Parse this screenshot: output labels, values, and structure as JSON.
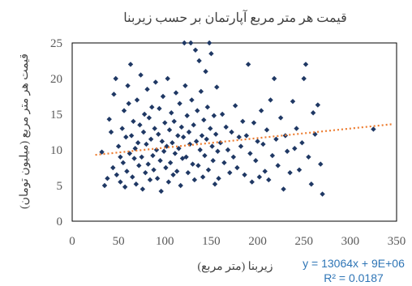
{
  "chart_data": {
    "type": "scatter",
    "title": "قیمت هر متر مربع آپارتمان بر حسب زیربنا",
    "xlabel": "زیربنا (متر مربع)",
    "ylabel": "قیمت هر متر مربع (میلیون تومان)",
    "xlim": [
      0,
      350
    ],
    "ylim": [
      0,
      25
    ],
    "x_ticks": [
      "0",
      "50",
      "100",
      "150",
      "200",
      "250",
      "300",
      "350"
    ],
    "y_ticks": [
      "0",
      "5",
      "10",
      "15",
      "20",
      "25"
    ],
    "grid": false,
    "legend": "none",
    "marker_color": "#1f3864",
    "trendline": {
      "type": "linear",
      "color": "#ed7d31",
      "x_range": [
        25,
        345
      ],
      "y_at_start": 9.3,
      "y_at_end": 13.6,
      "equation": "y = 13064x + 9E+06",
      "r_squared": "R² = 0.0187"
    },
    "points": [
      [
        32,
        9.7
      ],
      [
        35,
        5.0
      ],
      [
        38,
        6.0
      ],
      [
        40,
        14.3
      ],
      [
        42,
        12.5
      ],
      [
        44,
        7.5
      ],
      [
        45,
        17.8
      ],
      [
        47,
        20.0
      ],
      [
        48,
        6.5
      ],
      [
        50,
        10.5
      ],
      [
        52,
        9.0
      ],
      [
        52,
        5.5
      ],
      [
        54,
        13.0
      ],
      [
        55,
        8.2
      ],
      [
        56,
        15.5
      ],
      [
        57,
        4.8
      ],
      [
        58,
        11.8
      ],
      [
        59,
        7.0
      ],
      [
        60,
        19.0
      ],
      [
        61,
        16.5
      ],
      [
        62,
        9.5
      ],
      [
        63,
        22.0
      ],
      [
        64,
        12.0
      ],
      [
        65,
        6.2
      ],
      [
        66,
        14.0
      ],
      [
        67,
        8.8
      ],
      [
        68,
        10.2
      ],
      [
        69,
        5.2
      ],
      [
        70,
        17.0
      ],
      [
        71,
        11.0
      ],
      [
        72,
        7.8
      ],
      [
        73,
        13.5
      ],
      [
        74,
        20.5
      ],
      [
        75,
        9.0
      ],
      [
        76,
        4.5
      ],
      [
        77,
        12.5
      ],
      [
        78,
        15.0
      ],
      [
        79,
        6.8
      ],
      [
        80,
        10.8
      ],
      [
        81,
        18.5
      ],
      [
        82,
        8.0
      ],
      [
        83,
        14.5
      ],
      [
        84,
        5.8
      ],
      [
        85,
        11.5
      ],
      [
        86,
        16.0
      ],
      [
        87,
        9.2
      ],
      [
        88,
        7.2
      ],
      [
        89,
        13.0
      ],
      [
        90,
        19.5
      ],
      [
        91,
        10.0
      ],
      [
        92,
        6.0
      ],
      [
        93,
        12.2
      ],
      [
        94,
        15.8
      ],
      [
        95,
        8.5
      ],
      [
        96,
        4.2
      ],
      [
        97,
        11.2
      ],
      [
        98,
        17.5
      ],
      [
        99,
        9.8
      ],
      [
        100,
        13.8
      ],
      [
        101,
        7.5
      ],
      [
        102,
        10.5
      ],
      [
        103,
        20.0
      ],
      [
        104,
        5.5
      ],
      [
        105,
        12.8
      ],
      [
        106,
        8.2
      ],
      [
        107,
        15.2
      ],
      [
        108,
        11.0
      ],
      [
        109,
        6.5
      ],
      [
        110,
        14.0
      ],
      [
        111,
        9.5
      ],
      [
        112,
        18.0
      ],
      [
        113,
        7.0
      ],
      [
        114,
        12.0
      ],
      [
        115,
        10.2
      ],
      [
        116,
        16.5
      ],
      [
        117,
        5.0
      ],
      [
        118,
        13.2
      ],
      [
        119,
        8.8
      ],
      [
        120,
        11.8
      ],
      [
        121,
        25.0
      ],
      [
        122,
        19.0
      ],
      [
        123,
        9.0
      ],
      [
        124,
        14.8
      ],
      [
        125,
        6.8
      ],
      [
        126,
        12.5
      ],
      [
        127,
        10.8
      ],
      [
        128,
        25.0
      ],
      [
        129,
        17.0
      ],
      [
        130,
        8.0
      ],
      [
        131,
        13.5
      ],
      [
        132,
        5.8
      ],
      [
        133,
        24.0
      ],
      [
        134,
        11.2
      ],
      [
        135,
        15.5
      ],
      [
        136,
        7.8
      ],
      [
        137,
        22.5
      ],
      [
        138,
        10.0
      ],
      [
        139,
        18.2
      ],
      [
        140,
        12.0
      ],
      [
        141,
        6.2
      ],
      [
        142,
        14.2
      ],
      [
        143,
        9.2
      ],
      [
        144,
        21.0
      ],
      [
        145,
        11.5
      ],
      [
        146,
        16.0
      ],
      [
        147,
        7.2
      ],
      [
        148,
        25.0
      ],
      [
        149,
        13.0
      ],
      [
        150,
        23.5
      ],
      [
        151,
        10.5
      ],
      [
        152,
        8.5
      ],
      [
        153,
        14.8
      ],
      [
        154,
        5.2
      ],
      [
        155,
        12.2
      ],
      [
        156,
        18.8
      ],
      [
        157,
        9.8
      ],
      [
        158,
        6.0
      ],
      [
        160,
        11.0
      ],
      [
        162,
        15.0
      ],
      [
        164,
        8.2
      ],
      [
        166,
        13.2
      ],
      [
        168,
        10.0
      ],
      [
        170,
        6.8
      ],
      [
        172,
        12.5
      ],
      [
        174,
        9.0
      ],
      [
        176,
        16.2
      ],
      [
        178,
        7.5
      ],
      [
        180,
        11.8
      ],
      [
        182,
        10.5
      ],
      [
        184,
        14.0
      ],
      [
        186,
        6.5
      ],
      [
        188,
        12.0
      ],
      [
        190,
        22.0
      ],
      [
        192,
        9.5
      ],
      [
        194,
        5.5
      ],
      [
        196,
        13.8
      ],
      [
        198,
        8.5
      ],
      [
        200,
        11.2
      ],
      [
        202,
        6.2
      ],
      [
        204,
        15.5
      ],
      [
        206,
        10.8
      ],
      [
        208,
        7.0
      ],
      [
        210,
        12.8
      ],
      [
        212,
        5.8
      ],
      [
        214,
        17.0
      ],
      [
        216,
        9.2
      ],
      [
        218,
        20.0
      ],
      [
        220,
        11.5
      ],
      [
        222,
        7.8
      ],
      [
        225,
        14.5
      ],
      [
        228,
        4.5
      ],
      [
        230,
        12.0
      ],
      [
        232,
        9.8
      ],
      [
        235,
        6.8
      ],
      [
        238,
        16.8
      ],
      [
        240,
        10.2
      ],
      [
        242,
        13.0
      ],
      [
        245,
        7.2
      ],
      [
        248,
        11.0
      ],
      [
        250,
        20.0
      ],
      [
        252,
        22.0
      ],
      [
        255,
        9.0
      ],
      [
        258,
        5.2
      ],
      [
        260,
        15.2
      ],
      [
        262,
        12.2
      ],
      [
        265,
        16.3
      ],
      [
        268,
        8.0
      ],
      [
        270,
        3.8
      ],
      [
        325,
        12.9
      ]
    ]
  }
}
